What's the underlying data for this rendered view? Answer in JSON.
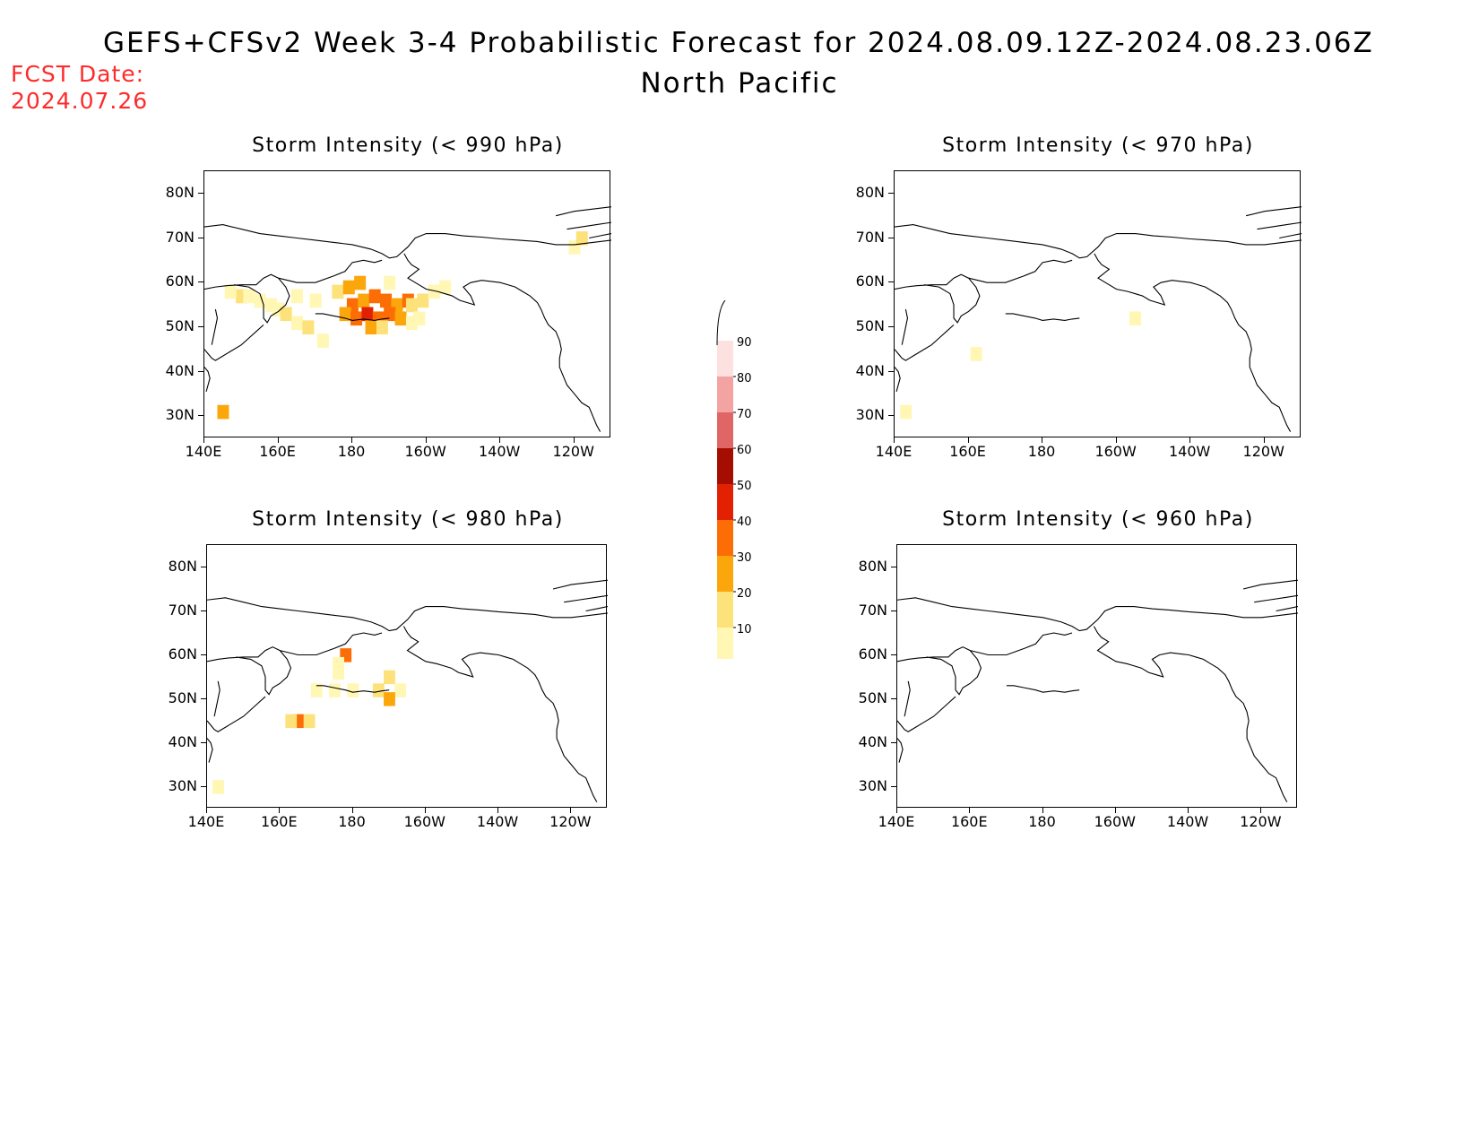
{
  "header": {
    "title_line1": "GEFS+CFSv2 Week 3-4 Probabilistic Forecast for 2024.08.09.12Z-2024.08.23.06Z",
    "title_line2": "North Pacific",
    "fcst_label": "FCST Date:",
    "fcst_date": "2024.07.26"
  },
  "panels": [
    {
      "title": "Storm Intensity (< 990 hPa)"
    },
    {
      "title": "Storm Intensity (< 970 hPa)"
    },
    {
      "title": "Storm Intensity (< 980 hPa)"
    },
    {
      "title": "Storm Intensity (< 960 hPa)"
    }
  ],
  "axes": {
    "lat_ticks": [
      "80N",
      "70N",
      "60N",
      "50N",
      "40N",
      "30N"
    ],
    "lon_ticks": [
      "140E",
      "160E",
      "180",
      "160W",
      "140W",
      "120W"
    ]
  },
  "colorbar": {
    "levels": [
      "10",
      "20",
      "30",
      "40",
      "50",
      "60",
      "70",
      "80",
      "90"
    ],
    "colors": [
      "#fff7b3",
      "#fde17a",
      "#fba60a",
      "#fc6d05",
      "#e32102",
      "#a50d00",
      "#e06666",
      "#f4a3a3",
      "#fde0e0"
    ]
  }
}
